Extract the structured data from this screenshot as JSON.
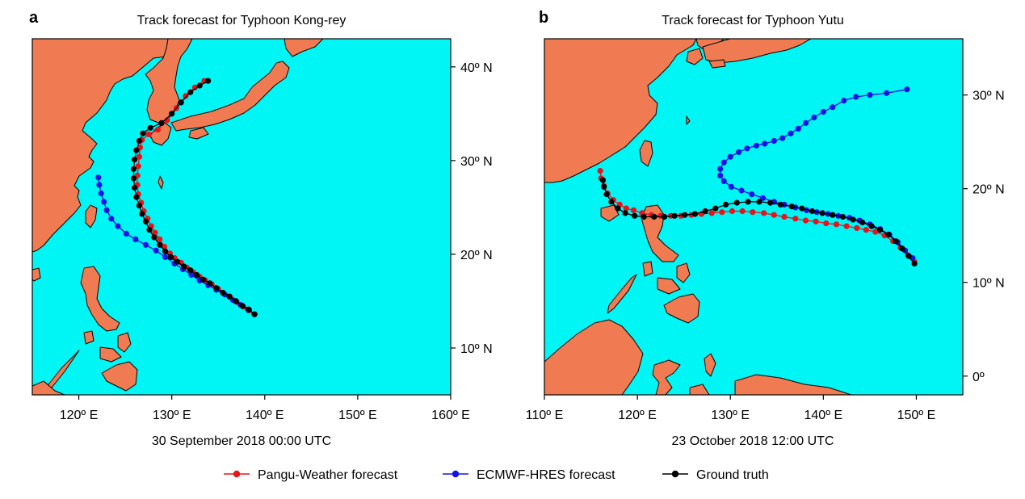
{
  "colors": {
    "ocean": "#00f5f5",
    "land": "#f07b52",
    "pangu": "#e8131b",
    "ecmwf": "#1414e6",
    "truth": "#000000"
  },
  "legend": {
    "items": [
      {
        "label": "Pangu-Weather forecast",
        "color": "#e8131b"
      },
      {
        "label": "ECMWF-HRES forecast",
        "color": "#1414e6"
      },
      {
        "label": "Ground truth",
        "color": "#000000"
      }
    ]
  },
  "chart_data": [
    {
      "type": "scatter",
      "panel_letter": "a",
      "title": "Track forecast for Typhoon Kong-rey",
      "xlabel": "30 September 2018 00:00 UTC",
      "ylabel": "",
      "xlim": [
        115,
        160
      ],
      "ylim": [
        5,
        43
      ],
      "xticks": [
        120,
        130,
        140,
        150,
        160
      ],
      "xtick_labels": [
        "120º E",
        "130º E",
        "140º E",
        "150º E",
        "160º E"
      ],
      "yticks": [
        10,
        20,
        30,
        40
      ],
      "ytick_labels": [
        "10º N",
        "20º N",
        "30º N",
        "40º N"
      ],
      "y_axis_side": "right",
      "series": [
        {
          "name": "Pangu-Weather forecast",
          "color": "#e8131b",
          "points": [
            [
              138.9,
              13.6
            ],
            [
              138.3,
              14.0
            ],
            [
              137.7,
              14.4
            ],
            [
              137.0,
              14.9
            ],
            [
              136.3,
              15.4
            ],
            [
              135.6,
              15.8
            ],
            [
              135.0,
              16.3
            ],
            [
              134.3,
              16.8
            ],
            [
              133.6,
              17.2
            ],
            [
              133.0,
              17.6
            ],
            [
              132.3,
              18.1
            ],
            [
              131.6,
              18.6
            ],
            [
              131.0,
              19.1
            ],
            [
              130.3,
              19.6
            ],
            [
              129.8,
              20.1
            ],
            [
              129.2,
              20.8
            ],
            [
              128.7,
              21.6
            ],
            [
              128.2,
              22.3
            ],
            [
              127.8,
              23.0
            ],
            [
              127.4,
              23.8
            ],
            [
              127.0,
              24.6
            ],
            [
              126.7,
              25.5
            ],
            [
              126.4,
              26.4
            ],
            [
              126.3,
              27.4
            ],
            [
              126.3,
              28.4
            ],
            [
              126.4,
              29.4
            ],
            [
              126.5,
              30.4
            ],
            [
              126.6,
              31.4
            ],
            [
              126.8,
              32.2
            ],
            [
              127.5,
              32.8
            ],
            [
              128.5,
              33.3
            ],
            [
              129.5,
              34.3
            ],
            [
              130.5,
              35.6
            ],
            [
              131.5,
              36.9
            ],
            [
              132.5,
              37.8
            ],
            [
              133.5,
              38.5
            ]
          ]
        },
        {
          "name": "ECMWF-HRES forecast",
          "color": "#1414e6",
          "points": [
            [
              138.9,
              13.6
            ],
            [
              138.2,
              14.1
            ],
            [
              137.4,
              14.6
            ],
            [
              136.6,
              15.1
            ],
            [
              135.7,
              15.7
            ],
            [
              134.8,
              16.2
            ],
            [
              133.9,
              16.7
            ],
            [
              133.0,
              17.2
            ],
            [
              132.1,
              17.8
            ],
            [
              131.2,
              18.4
            ],
            [
              130.3,
              19.0
            ],
            [
              129.3,
              19.7
            ],
            [
              128.3,
              20.4
            ],
            [
              127.2,
              21.0
            ],
            [
              126.1,
              21.6
            ],
            [
              125.1,
              22.2
            ],
            [
              124.2,
              23.0
            ],
            [
              123.5,
              23.8
            ],
            [
              123.0,
              24.7
            ],
            [
              122.7,
              25.6
            ],
            [
              122.4,
              26.5
            ],
            [
              122.2,
              27.4
            ],
            [
              122.1,
              28.2
            ]
          ]
        },
        {
          "name": "Ground truth",
          "color": "#000000",
          "points": [
            [
              138.9,
              13.6
            ],
            [
              138.3,
              14.1
            ],
            [
              137.6,
              14.5
            ],
            [
              136.9,
              15.0
            ],
            [
              136.2,
              15.5
            ],
            [
              135.5,
              15.9
            ],
            [
              134.8,
              16.4
            ],
            [
              134.1,
              16.9
            ],
            [
              133.4,
              17.3
            ],
            [
              132.7,
              17.8
            ],
            [
              132.0,
              18.3
            ],
            [
              131.3,
              18.7
            ],
            [
              130.6,
              19.2
            ],
            [
              129.9,
              19.7
            ],
            [
              129.3,
              20.3
            ],
            [
              128.7,
              21.0
            ],
            [
              128.1,
              21.8
            ],
            [
              127.6,
              22.6
            ],
            [
              127.2,
              23.5
            ],
            [
              126.8,
              24.3
            ],
            [
              126.5,
              25.2
            ],
            [
              126.2,
              26.1
            ],
            [
              126.0,
              27.1
            ],
            [
              125.9,
              28.1
            ],
            [
              125.9,
              29.1
            ],
            [
              126.0,
              30.1
            ],
            [
              126.2,
              31.1
            ],
            [
              126.5,
              32.1
            ],
            [
              126.9,
              32.9
            ],
            [
              127.7,
              33.5
            ],
            [
              128.9,
              34.0
            ],
            [
              130.0,
              35.0
            ],
            [
              131.0,
              36.2
            ],
            [
              132.0,
              37.3
            ],
            [
              133.0,
              38.0
            ],
            [
              133.9,
              38.5
            ]
          ]
        }
      ]
    },
    {
      "type": "scatter",
      "panel_letter": "b",
      "title": "Track forecast for Typhoon Yutu",
      "xlabel": "23 October 2018 12:00 UTC",
      "ylabel": "",
      "xlim": [
        110,
        155
      ],
      "ylim": [
        -2,
        36
      ],
      "xticks": [
        110,
        120,
        130,
        140,
        150
      ],
      "xtick_labels": [
        "110º E",
        "120º E",
        "130º E",
        "140º E",
        "150º E"
      ],
      "yticks": [
        0,
        10,
        20,
        30
      ],
      "ytick_labels": [
        "0º",
        "10º N",
        "20º N",
        "30º N"
      ],
      "y_axis_side": "right",
      "series": [
        {
          "name": "Pangu-Weather forecast",
          "color": "#e8131b",
          "points": [
            [
              149.8,
              12.2
            ],
            [
              149.1,
              12.9
            ],
            [
              148.3,
              13.7
            ],
            [
              147.5,
              14.4
            ],
            [
              146.6,
              15.0
            ],
            [
              145.6,
              15.4
            ],
            [
              144.6,
              15.6
            ],
            [
              143.6,
              15.8
            ],
            [
              142.5,
              16.0
            ],
            [
              141.4,
              16.2
            ],
            [
              140.3,
              16.3
            ],
            [
              139.2,
              16.5
            ],
            [
              138.1,
              16.6
            ],
            [
              137.0,
              16.8
            ],
            [
              135.8,
              17.0
            ],
            [
              134.7,
              17.2
            ],
            [
              133.6,
              17.4
            ],
            [
              132.4,
              17.5
            ],
            [
              131.3,
              17.6
            ],
            [
              130.2,
              17.6
            ],
            [
              129.1,
              17.5
            ],
            [
              128.0,
              17.4
            ],
            [
              126.9,
              17.3
            ],
            [
              125.8,
              17.2
            ],
            [
              124.7,
              17.1
            ],
            [
              123.6,
              17.1
            ],
            [
              122.5,
              17.1
            ],
            [
              121.5,
              17.2
            ],
            [
              120.5,
              17.4
            ],
            [
              119.6,
              17.7
            ],
            [
              118.8,
              17.9
            ],
            [
              118.1,
              18.3
            ],
            [
              117.4,
              18.8
            ],
            [
              116.8,
              19.5
            ],
            [
              116.4,
              20.3
            ],
            [
              116.1,
              21.1
            ],
            [
              116.0,
              21.9
            ]
          ]
        },
        {
          "name": "ECMWF-HRES forecast",
          "color": "#1414e6",
          "points": [
            [
              149.6,
              12.6
            ],
            [
              148.8,
              13.4
            ],
            [
              148.0,
              14.3
            ],
            [
              147.1,
              15.1
            ],
            [
              146.1,
              15.7
            ],
            [
              145.0,
              16.2
            ],
            [
              143.9,
              16.6
            ],
            [
              142.8,
              16.9
            ],
            [
              141.6,
              17.1
            ],
            [
              140.5,
              17.3
            ],
            [
              139.3,
              17.5
            ],
            [
              138.2,
              17.7
            ],
            [
              137.0,
              18.0
            ],
            [
              135.8,
              18.3
            ],
            [
              134.7,
              18.6
            ],
            [
              133.5,
              19.0
            ],
            [
              132.3,
              19.4
            ],
            [
              131.2,
              19.8
            ],
            [
              130.1,
              20.2
            ],
            [
              129.3,
              20.8
            ],
            [
              128.9,
              21.4
            ],
            [
              128.9,
              22.1
            ],
            [
              129.3,
              22.8
            ],
            [
              130.0,
              23.4
            ],
            [
              130.9,
              23.9
            ],
            [
              131.8,
              24.3
            ],
            [
              132.8,
              24.6
            ],
            [
              133.7,
              24.8
            ],
            [
              134.7,
              25.1
            ],
            [
              135.6,
              25.4
            ],
            [
              136.5,
              25.9
            ],
            [
              137.3,
              26.4
            ],
            [
              138.1,
              27.0
            ],
            [
              139.0,
              27.6
            ],
            [
              140.0,
              28.2
            ],
            [
              141.0,
              28.7
            ],
            [
              142.2,
              29.4
            ],
            [
              143.5,
              29.8
            ],
            [
              145.0,
              30.0
            ],
            [
              146.8,
              30.2
            ],
            [
              149.0,
              30.6
            ]
          ]
        },
        {
          "name": "Ground truth",
          "color": "#000000",
          "points": [
            [
              149.8,
              12.0
            ],
            [
              149.2,
              12.8
            ],
            [
              148.5,
              13.6
            ],
            [
              147.8,
              14.4
            ],
            [
              147.0,
              15.1
            ],
            [
              146.1,
              15.6
            ],
            [
              145.2,
              16.0
            ],
            [
              144.2,
              16.4
            ],
            [
              143.2,
              16.7
            ],
            [
              142.1,
              17.0
            ],
            [
              141.0,
              17.2
            ],
            [
              139.9,
              17.4
            ],
            [
              138.8,
              17.6
            ],
            [
              137.7,
              17.9
            ],
            [
              136.6,
              18.1
            ],
            [
              135.4,
              18.3
            ],
            [
              134.3,
              18.5
            ],
            [
              133.1,
              18.6
            ],
            [
              131.9,
              18.6
            ],
            [
              130.7,
              18.5
            ],
            [
              129.5,
              18.3
            ],
            [
              128.4,
              17.9
            ],
            [
              127.3,
              17.6
            ],
            [
              126.2,
              17.3
            ],
            [
              125.1,
              17.2
            ],
            [
              124.0,
              17.1
            ],
            [
              122.9,
              17.0
            ],
            [
              121.8,
              17.0
            ],
            [
              120.7,
              17.0
            ],
            [
              119.7,
              17.1
            ],
            [
              118.7,
              17.4
            ],
            [
              117.9,
              17.9
            ],
            [
              117.2,
              18.6
            ],
            [
              116.7,
              19.4
            ],
            [
              116.4,
              20.2
            ],
            [
              116.3,
              20.9
            ]
          ]
        }
      ]
    }
  ]
}
